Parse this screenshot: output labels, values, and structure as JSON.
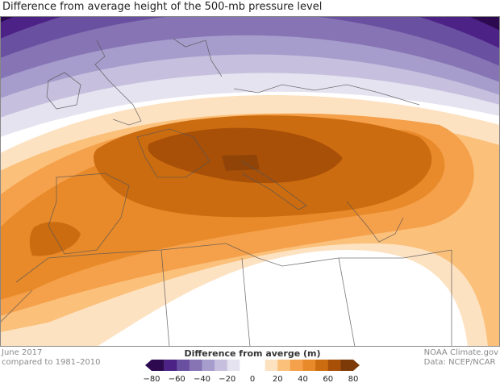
{
  "title": "Difference from average height of the 500-mb pressure level",
  "footer_left": {
    "line1": "June 2017",
    "line2": "compared to 1981–2010"
  },
  "footer_right": {
    "line1": "NOAA Climate.gov",
    "line2": "Data: NCEP/NCAR"
  },
  "legend": {
    "title": "Difference from averge (m)",
    "unit": "m",
    "range": [
      -80,
      80
    ],
    "step": 10,
    "tick_labels": [
      "−80",
      "−60",
      "−40",
      "−20",
      "0",
      "20",
      "40",
      "60",
      "80"
    ],
    "colors": [
      "#2d0a50",
      "#4c2287",
      "#6a50a0",
      "#8674b4",
      "#a69dcc",
      "#c6c0de",
      "#e5e3f0",
      "#ffffff",
      "#ffffff",
      "#fde2c2",
      "#fbc07a",
      "#f5a04a",
      "#e88a2a",
      "#cc6c10",
      "#a85008",
      "#7c3a08"
    ]
  }
}
